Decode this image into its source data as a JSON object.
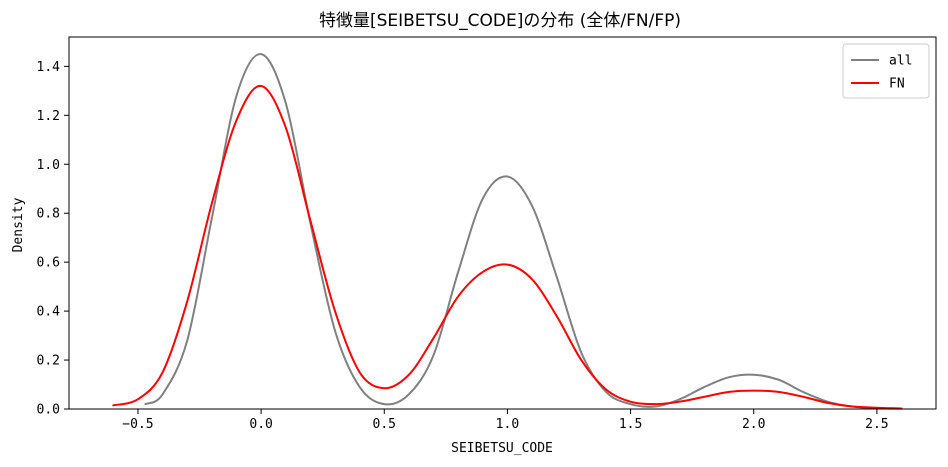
{
  "chart_data": {
    "type": "line",
    "title": "特徴量[SEIBETSU_CODE]の分布 (全体/FN/FP)",
    "xlabel": "SEIBETSU_CODE",
    "ylabel": "Density",
    "xlim": [
      -0.78,
      2.74
    ],
    "ylim": [
      0,
      1.52
    ],
    "xticks": [
      -0.5,
      0.0,
      0.5,
      1.0,
      1.5,
      2.0,
      2.5
    ],
    "xtick_labels": [
      "−0.5",
      "0.0",
      "0.5",
      "1.0",
      "1.5",
      "2.0",
      "2.5"
    ],
    "yticks": [
      0.0,
      0.2,
      0.4,
      0.6,
      0.8,
      1.0,
      1.2,
      1.4
    ],
    "ytick_labels": [
      "0.0",
      "0.2",
      "0.4",
      "0.6",
      "0.8",
      "1.0",
      "1.2",
      "1.4"
    ],
    "grid": false,
    "legend": "top-right",
    "series": [
      {
        "name": "all",
        "color": "#808080",
        "x": [
          -0.47,
          -0.4,
          -0.3,
          -0.2,
          -0.1,
          0.0,
          0.1,
          0.2,
          0.3,
          0.4,
          0.5,
          0.6,
          0.7,
          0.8,
          0.9,
          1.0,
          1.1,
          1.2,
          1.3,
          1.4,
          1.5,
          1.6,
          1.7,
          1.8,
          1.9,
          2.0,
          2.1,
          2.2,
          2.3,
          2.4,
          2.5,
          2.6
        ],
        "y": [
          0.02,
          0.06,
          0.28,
          0.78,
          1.28,
          1.45,
          1.25,
          0.76,
          0.32,
          0.09,
          0.02,
          0.06,
          0.22,
          0.56,
          0.86,
          0.95,
          0.83,
          0.54,
          0.23,
          0.07,
          0.02,
          0.01,
          0.04,
          0.09,
          0.13,
          0.14,
          0.12,
          0.07,
          0.03,
          0.01,
          0.003,
          0.001
        ]
      },
      {
        "name": "FN",
        "color": "#ff0000",
        "x": [
          -0.6,
          -0.5,
          -0.4,
          -0.3,
          -0.2,
          -0.1,
          0.0,
          0.1,
          0.2,
          0.3,
          0.4,
          0.5,
          0.6,
          0.7,
          0.8,
          0.9,
          1.0,
          1.1,
          1.2,
          1.3,
          1.4,
          1.5,
          1.6,
          1.7,
          1.8,
          1.9,
          2.0,
          2.1,
          2.2,
          2.3,
          2.4,
          2.5,
          2.6
        ],
        "y": [
          0.015,
          0.04,
          0.15,
          0.44,
          0.84,
          1.18,
          1.32,
          1.15,
          0.77,
          0.4,
          0.15,
          0.085,
          0.14,
          0.29,
          0.46,
          0.56,
          0.59,
          0.53,
          0.38,
          0.2,
          0.08,
          0.03,
          0.02,
          0.03,
          0.05,
          0.07,
          0.075,
          0.07,
          0.05,
          0.025,
          0.01,
          0.005,
          0.002
        ]
      }
    ]
  }
}
